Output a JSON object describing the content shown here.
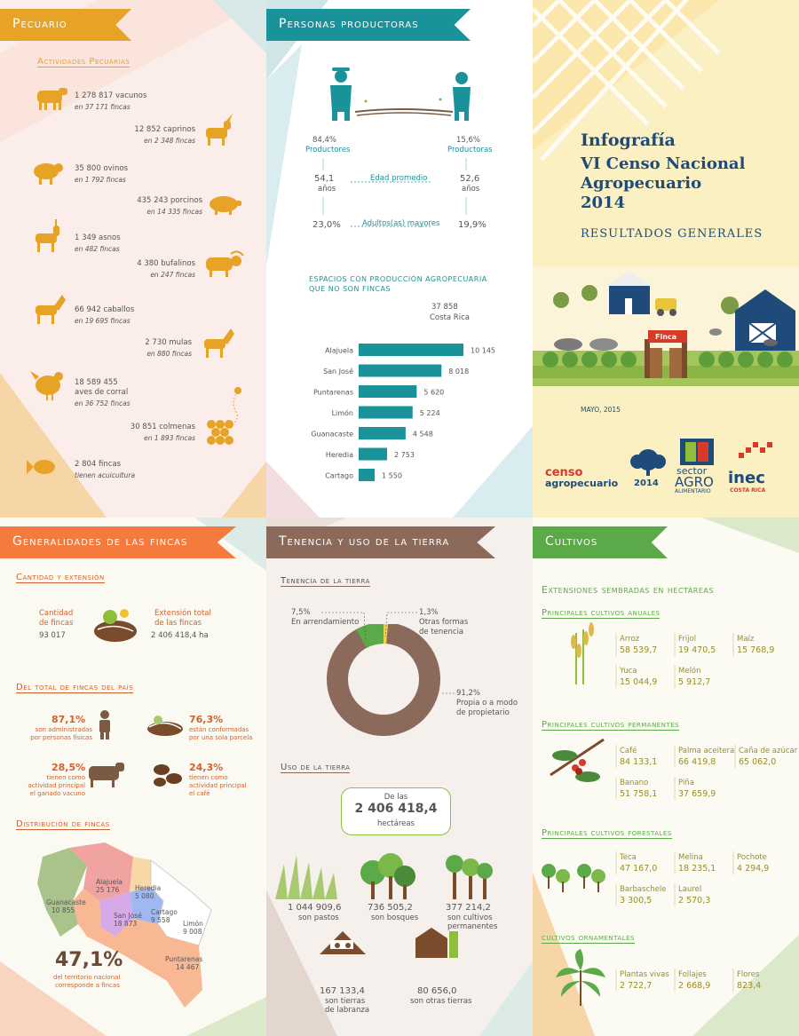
{
  "pecuario": {
    "title": "Pecuario",
    "subtitle": "Actividades Pecuarias",
    "items": [
      {
        "main": "1 278 817 vacunos",
        "sub": "en 37 171 fincas"
      },
      {
        "main": "12 852 caprinos",
        "sub": "en 2 348 fincas"
      },
      {
        "main": "35 800 ovinos",
        "sub": "en 1 792 fincas"
      },
      {
        "main": "435 243 porcinos",
        "sub": "en 14 335 fincas"
      },
      {
        "main": "1 349 asnos",
        "sub": "en 482 fincas"
      },
      {
        "main": "4 380 bufalinos",
        "sub": "en 247 fincas"
      },
      {
        "main": "66 942 caballos",
        "sub": "en 19 695 fincas"
      },
      {
        "main": "2 730 mulas",
        "sub": "en 880 fincas"
      },
      {
        "main": "18 589 455",
        "main2": "aves de corral",
        "sub": "en 36 752 fincas"
      },
      {
        "main": "30 851 colmenas",
        "sub": "en 1 893 fincas"
      },
      {
        "main": "2 804 fincas",
        "sub": "tienen acuicultura"
      }
    ]
  },
  "personas": {
    "title": "Personas productoras",
    "left_pct": "84,4%",
    "left_label": "Productores",
    "right_pct": "15,6%",
    "right_label": "Productoras",
    "edad_label": "Edad promedio",
    "left_age": "54,1",
    "right_age": "52,6",
    "years": "años",
    "mayores_label": "Adultos(as) mayores",
    "left_may": "23,0%",
    "right_may": "19,9%",
    "espacios_title1": "ESPACIOS CON PRODUCCIÓN AGROPECUARIA",
    "espacios_title2": "QUE NO SON FINCAS",
    "total": "37 858",
    "total_label": "Costa Rica"
  },
  "chart_data": {
    "type": "bar",
    "categories": [
      "Alajuela",
      "San José",
      "Puntarenas",
      "Limón",
      "Guanacaste",
      "Heredia",
      "Cartago"
    ],
    "values": [
      10145,
      8018,
      5620,
      5224,
      4548,
      2753,
      1550
    ],
    "labels": [
      "10 145",
      "8 018",
      "5 620",
      "5 224",
      "4 548",
      "2 753",
      "1 550"
    ]
  },
  "cover": {
    "title1": "Infografía",
    "title2": "VI Censo Nacional",
    "title3": "Agropecuario",
    "title4": "2014",
    "subtitle": "RESULTADOS GENERALES",
    "date": "MAYO, 2015",
    "finca": "Finca",
    "logo1a": "censo",
    "logo1b": "agropecuario",
    "logo1c": "2014",
    "logo2a": "sector",
    "logo2b": "AGRO",
    "logo2c": "ALIMENTARIO",
    "logo3a": "inec",
    "logo3b": "COSTA RICA"
  },
  "generalidades": {
    "title": "Generalidades de las fincas",
    "cant_title": "Cantidad y extensión",
    "cant_label1": "Cantidad",
    "cant_label2": "de fincas",
    "cant_value": "93 017",
    "ext_label1": "Extensión total",
    "ext_label2": "de las fincas",
    "ext_value": "2 406 418,4 ha",
    "total_title": "Del total de fincas del país",
    "s1_pct": "87,1%",
    "s1_l1": "son administradas",
    "s1_l2": "por personas físicas",
    "s2_pct": "76,3%",
    "s2_l1": "están conformadas",
    "s2_l2": "por una sola parcela",
    "s3_pct": "28,5%",
    "s3_l1": "tienen como",
    "s3_l2": "actividad principal",
    "s3_l3": "el ganado vacuno",
    "s4_pct": "24,3%",
    "s4_l1": "tienen como",
    "s4_l2": "actividad principal",
    "s4_l3": "el café",
    "dist_title": "Distribución de fincas",
    "regions": [
      {
        "name": "Alajuela",
        "value": "25 176"
      },
      {
        "name": "Heredia",
        "value": "5 080"
      },
      {
        "name": "Guanacaste",
        "value": "10 855"
      },
      {
        "name": "San José",
        "value": "18 873"
      },
      {
        "name": "Cartago",
        "value": "9 558"
      },
      {
        "name": "Limón",
        "value": "9 008"
      },
      {
        "name": "Puntarenas",
        "value": "14 467"
      }
    ],
    "pct": "47,1%",
    "pct_l1": "del territorio nacional",
    "pct_l2": "corresponde a fincas"
  },
  "tenencia": {
    "title": "Tenencia y uso de la tierra",
    "ten_title": "Tenencia de la tierra",
    "arr_pct": "7,5%",
    "arr_label": "En arrendamiento",
    "otras_pct": "1,3%",
    "otras_l1": "Otras formas",
    "otras_l2": "de tenencia",
    "prop_pct": "91,2%",
    "prop_l1": "Propia o a modo",
    "prop_l2": "de propietario",
    "uso_title": "Uso de la tierra",
    "box_l1": "De las",
    "box_value": "2 406 418,4",
    "box_l2": "hectáreas",
    "u1_val": "1 044 909,6",
    "u1_l1": "son pastos",
    "u2_val": "736 505,2",
    "u2_l1": "son bosques",
    "u3_val": "377 214,2",
    "u3_l1": "son cultivos",
    "u3_l2": "permanentes",
    "u4_val": "167 133,4",
    "u4_l1": "son tierras",
    "u4_l2": "de labranza",
    "u5_val": "80 656,0",
    "u5_l1": "son otras tierras"
  },
  "cultivos": {
    "title": "Cultivos",
    "ext_title": "Extensiones sembradas en hectáreas",
    "anuales_title": "Principales cultivos anuales",
    "anuales": [
      {
        "name": "Arroz",
        "value": "58 539,7"
      },
      {
        "name": "Frijol",
        "value": "19 470,5"
      },
      {
        "name": "Maíz",
        "value": "15 768,9"
      },
      {
        "name": "Yuca",
        "value": "15 044,9"
      },
      {
        "name": "Melón",
        "value": "5 912,7"
      }
    ],
    "perm_title": "Principales cultivos permanentes",
    "perm": [
      {
        "name": "Café",
        "value": "84 133,1"
      },
      {
        "name": "Palma aceitera",
        "value": "66 419,8"
      },
      {
        "name": "Caña de azúcar",
        "value": "65 062,0"
      },
      {
        "name": "Banano",
        "value": "51 758,1"
      },
      {
        "name": "Piña",
        "value": "37 659,9"
      }
    ],
    "for_title": "Principales cultivos forestales",
    "for": [
      {
        "name": "Teca",
        "value": "47 167,0"
      },
      {
        "name": "Melina",
        "value": "18 235,1"
      },
      {
        "name": "Pochote",
        "value": "4 294,9"
      },
      {
        "name": "Barbaschele",
        "value": "3 300,5"
      },
      {
        "name": "Laurel",
        "value": "2 570,3"
      }
    ],
    "orn_title": "cultivos ornamentales",
    "orn": [
      {
        "name": "Plantas vivas",
        "value": "2 722,7"
      },
      {
        "name": "Follajes",
        "value": "2 668,9"
      },
      {
        "name": "Flores",
        "value": "823,4"
      }
    ]
  },
  "colors": {
    "orange": "#e7a325",
    "teal": "#1a929a",
    "coral": "#f47a3d",
    "brown": "#8b6a5b",
    "green": "#5ca94a",
    "olive": "#9a8d2a"
  }
}
